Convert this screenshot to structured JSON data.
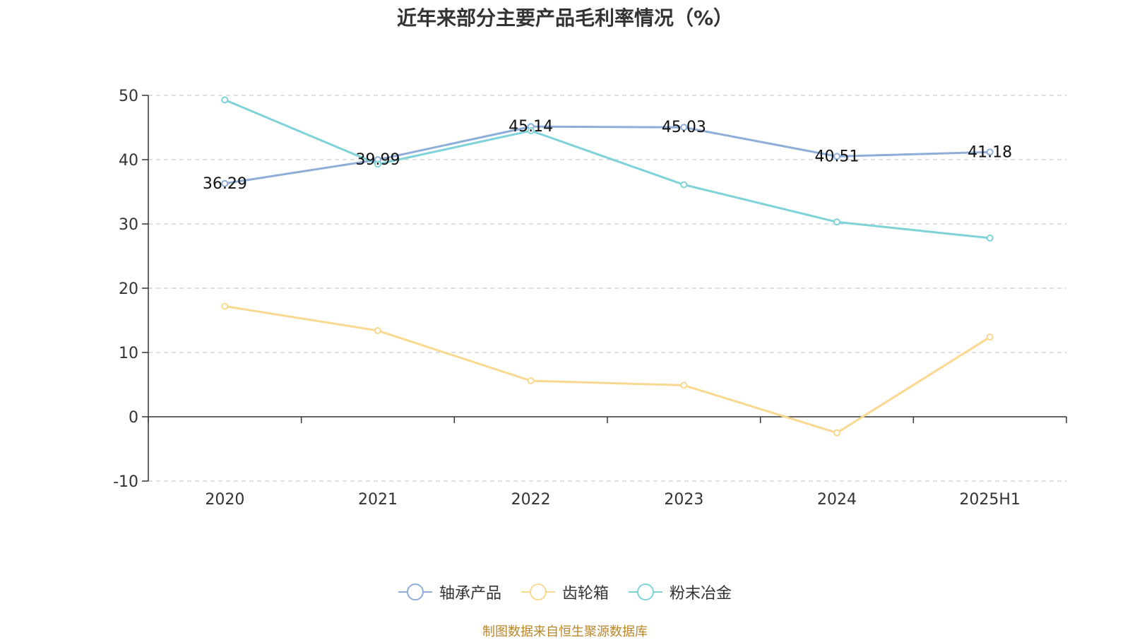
{
  "title": "近年来部分主要产品毛利率情况（%）",
  "source_note": "制图数据来自恒生聚源数据库",
  "colors": {
    "axis": "#333333",
    "grid": "#cccccc",
    "series": [
      "#8eaed8",
      "#fad890",
      "#7fd3d8"
    ]
  },
  "chart_data": {
    "type": "line",
    "title": "近年来部分主要产品毛利率情况（%）",
    "categories": [
      "2020",
      "2021",
      "2022",
      "2023",
      "2024",
      "2025H1"
    ],
    "ylim": [
      -10,
      50
    ],
    "yticks": [
      -10,
      0,
      10,
      20,
      30,
      40,
      50
    ],
    "grid": true,
    "legend_position": "bottom",
    "series": [
      {
        "name": "轴承产品",
        "values": [
          36.29,
          39.99,
          45.14,
          45.03,
          40.51,
          41.18
        ],
        "labels": [
          "36.29",
          "39.99",
          "45.14",
          "45.03",
          "40.51",
          "41.18"
        ]
      },
      {
        "name": "齿轮箱",
        "values": [
          17.2,
          13.4,
          5.6,
          4.9,
          -2.5,
          12.4
        ]
      },
      {
        "name": "粉末冶金",
        "values": [
          49.3,
          39.3,
          44.5,
          36.1,
          30.3,
          27.8
        ]
      }
    ]
  }
}
